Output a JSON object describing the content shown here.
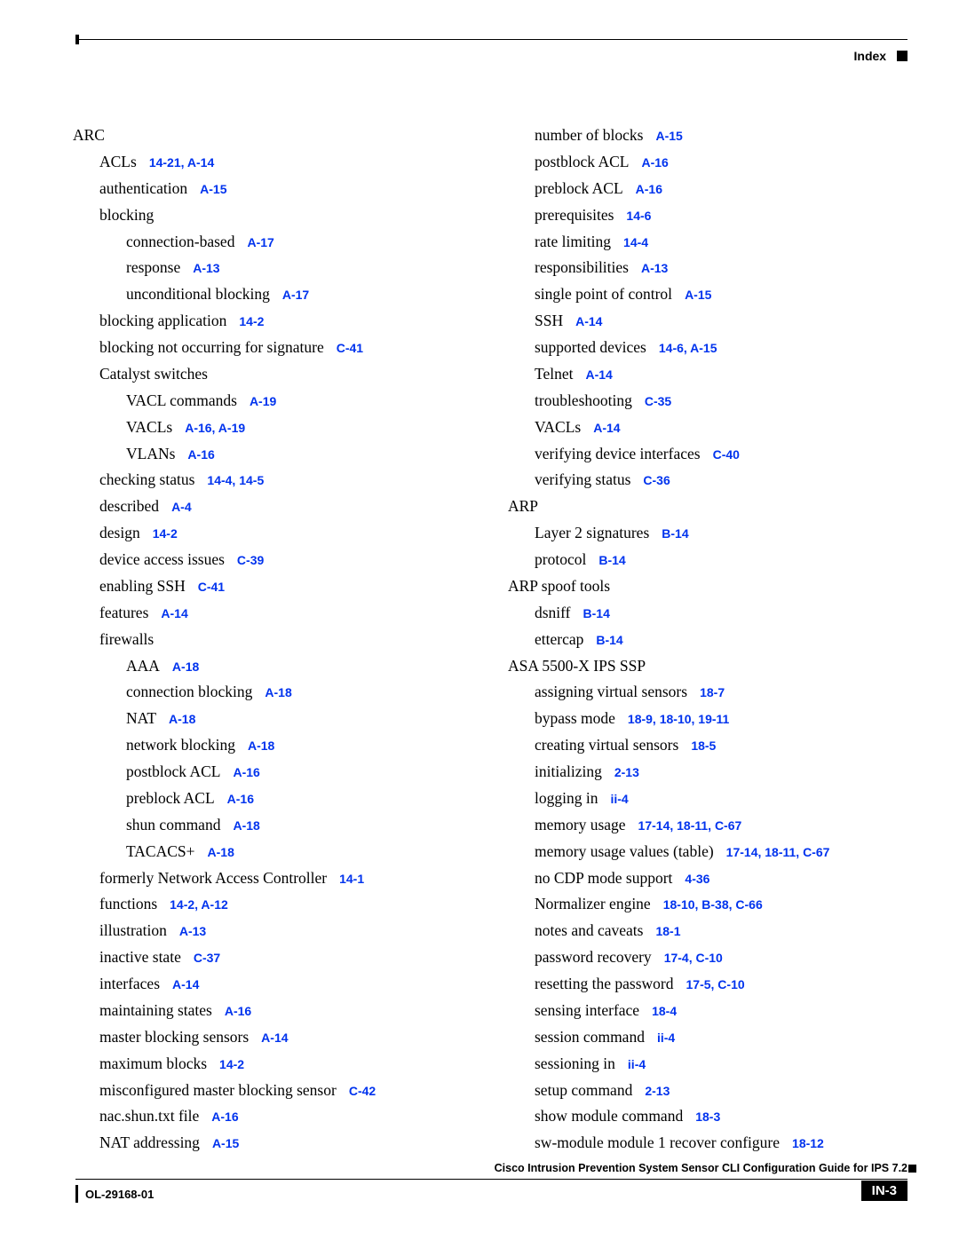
{
  "header": {
    "index_label": "Index"
  },
  "footer": {
    "title": "Cisco Intrusion Prevention System Sensor CLI Configuration Guide for IPS 7.2",
    "doc_id": "OL-29168-01",
    "page_number": "IN-3"
  },
  "colors": {
    "link": "#0033ee",
    "text": "#000000",
    "bg": "#ffffff"
  },
  "left_entries": [
    {
      "level": 0,
      "term": "ARC"
    },
    {
      "level": 1,
      "term": "ACLs",
      "ref": "14-21, A-14"
    },
    {
      "level": 1,
      "term": "authentication",
      "ref": "A-15"
    },
    {
      "level": 1,
      "term": "blocking"
    },
    {
      "level": 2,
      "term": "connection-based",
      "ref": "A-17"
    },
    {
      "level": 2,
      "term": "response",
      "ref": "A-13"
    },
    {
      "level": 2,
      "term": "unconditional blocking",
      "ref": "A-17"
    },
    {
      "level": 1,
      "term": "blocking application",
      "ref": "14-2"
    },
    {
      "level": 1,
      "term": "blocking not occurring for signature",
      "ref": "C-41"
    },
    {
      "level": 1,
      "term": "Catalyst switches"
    },
    {
      "level": 2,
      "term": "VACL commands",
      "ref": "A-19"
    },
    {
      "level": 2,
      "term": "VACLs",
      "ref": "A-16, A-19"
    },
    {
      "level": 2,
      "term": "VLANs",
      "ref": "A-16"
    },
    {
      "level": 1,
      "term": "checking status",
      "ref": "14-4, 14-5"
    },
    {
      "level": 1,
      "term": "described",
      "ref": "A-4"
    },
    {
      "level": 1,
      "term": "design",
      "ref": "14-2"
    },
    {
      "level": 1,
      "term": "device access issues",
      "ref": "C-39"
    },
    {
      "level": 1,
      "term": "enabling SSH",
      "ref": "C-41"
    },
    {
      "level": 1,
      "term": "features",
      "ref": "A-14"
    },
    {
      "level": 1,
      "term": "firewalls"
    },
    {
      "level": 2,
      "term": "AAA",
      "ref": "A-18"
    },
    {
      "level": 2,
      "term": "connection blocking",
      "ref": "A-18"
    },
    {
      "level": 2,
      "term": "NAT",
      "ref": "A-18"
    },
    {
      "level": 2,
      "term": "network blocking",
      "ref": "A-18"
    },
    {
      "level": 2,
      "term": "postblock ACL",
      "ref": "A-16"
    },
    {
      "level": 2,
      "term": "preblock ACL",
      "ref": "A-16"
    },
    {
      "level": 2,
      "term": "shun command",
      "ref": "A-18"
    },
    {
      "level": 2,
      "term": "TACACS+",
      "ref": "A-18"
    },
    {
      "level": 1,
      "term": "formerly Network Access Controller",
      "ref": "14-1"
    },
    {
      "level": 1,
      "term": "functions",
      "ref": "14-2, A-12"
    },
    {
      "level": 1,
      "term": "illustration",
      "ref": "A-13"
    },
    {
      "level": 1,
      "term": "inactive state",
      "ref": "C-37"
    },
    {
      "level": 1,
      "term": "interfaces",
      "ref": "A-14"
    },
    {
      "level": 1,
      "term": "maintaining states",
      "ref": "A-16"
    },
    {
      "level": 1,
      "term": "master blocking sensors",
      "ref": "A-14"
    },
    {
      "level": 1,
      "term": "maximum blocks",
      "ref": "14-2"
    },
    {
      "level": 1,
      "term": "misconfigured master blocking sensor",
      "ref": "C-42"
    },
    {
      "level": 1,
      "term": "nac.shun.txt file",
      "ref": "A-16"
    },
    {
      "level": 1,
      "term": "NAT addressing",
      "ref": "A-15"
    }
  ],
  "right_entries": [
    {
      "level": 1,
      "term": "number of blocks",
      "ref": "A-15"
    },
    {
      "level": 1,
      "term": "postblock ACL",
      "ref": "A-16"
    },
    {
      "level": 1,
      "term": "preblock ACL",
      "ref": "A-16"
    },
    {
      "level": 1,
      "term": "prerequisites",
      "ref": "14-6"
    },
    {
      "level": 1,
      "term": "rate limiting",
      "ref": "14-4"
    },
    {
      "level": 1,
      "term": "responsibilities",
      "ref": "A-13"
    },
    {
      "level": 1,
      "term": "single point of control",
      "ref": "A-15"
    },
    {
      "level": 1,
      "term": "SSH",
      "ref": "A-14"
    },
    {
      "level": 1,
      "term": "supported devices",
      "ref": "14-6, A-15"
    },
    {
      "level": 1,
      "term": "Telnet",
      "ref": "A-14"
    },
    {
      "level": 1,
      "term": "troubleshooting",
      "ref": "C-35"
    },
    {
      "level": 1,
      "term": "VACLs",
      "ref": "A-14"
    },
    {
      "level": 1,
      "term": "verifying device interfaces",
      "ref": "C-40"
    },
    {
      "level": 1,
      "term": "verifying status",
      "ref": "C-36"
    },
    {
      "level": 0,
      "term": "ARP"
    },
    {
      "level": 1,
      "term": "Layer 2 signatures",
      "ref": "B-14"
    },
    {
      "level": 1,
      "term": "protocol",
      "ref": "B-14"
    },
    {
      "level": 0,
      "term": "ARP spoof tools"
    },
    {
      "level": 1,
      "term": "dsniff",
      "ref": "B-14"
    },
    {
      "level": 1,
      "term": "ettercap",
      "ref": "B-14"
    },
    {
      "level": 0,
      "term": "ASA 5500-X IPS SSP"
    },
    {
      "level": 1,
      "term": "assigning virtual sensors",
      "ref": "18-7"
    },
    {
      "level": 1,
      "term": "bypass mode",
      "ref": "18-9, 18-10, 19-11"
    },
    {
      "level": 1,
      "term": "creating virtual sensors",
      "ref": "18-5"
    },
    {
      "level": 1,
      "term": "initializing",
      "ref": "2-13"
    },
    {
      "level": 1,
      "term": "logging in",
      "ref": "ii-4"
    },
    {
      "level": 1,
      "term": "memory usage",
      "ref": "17-14, 18-11, C-67"
    },
    {
      "level": 1,
      "term": "memory usage values (table)",
      "ref": "17-14, 18-11, C-67"
    },
    {
      "level": 1,
      "term": "no CDP mode support",
      "ref": "4-36"
    },
    {
      "level": 1,
      "term": "Normalizer engine",
      "ref": "18-10, B-38, C-66"
    },
    {
      "level": 1,
      "term": "notes and caveats",
      "ref": "18-1"
    },
    {
      "level": 1,
      "term": "password recovery",
      "ref": "17-4, C-10"
    },
    {
      "level": 1,
      "term": "resetting the password",
      "ref": "17-5, C-10"
    },
    {
      "level": 1,
      "term": "sensing interface",
      "ref": "18-4"
    },
    {
      "level": 1,
      "term": "session command",
      "ref": "ii-4"
    },
    {
      "level": 1,
      "term": "sessioning in",
      "ref": "ii-4"
    },
    {
      "level": 1,
      "term": "setup command",
      "ref": "2-13"
    },
    {
      "level": 1,
      "term": "show module command",
      "ref": "18-3"
    },
    {
      "level": 1,
      "term": "sw-module module 1 recover configure",
      "ref": "18-12"
    }
  ]
}
